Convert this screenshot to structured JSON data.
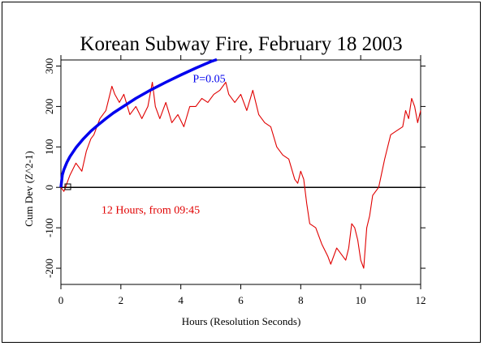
{
  "chart_data": {
    "type": "line",
    "title": "Korean Subway Fire, February 18 2003",
    "xlabel": "Hours (Resolution Seconds)",
    "ylabel": "Cum Dev (Z^2-1)",
    "xlim": [
      0,
      12
    ],
    "ylim": [
      -240,
      315
    ],
    "x_ticks": [
      0,
      2,
      4,
      6,
      8,
      10,
      12
    ],
    "x_tick_labels": [
      "0",
      "2",
      "4",
      "6",
      "8",
      "10",
      "12"
    ],
    "y_ticks": [
      -200,
      -100,
      0,
      100,
      200,
      300
    ],
    "y_tick_labels": [
      "-200",
      "-100",
      "0",
      "100",
      "200",
      "300"
    ],
    "grid": false,
    "series": [
      {
        "color": "#e00000",
        "x": [
          0.0,
          0.1,
          0.2,
          0.3,
          0.5,
          0.7,
          0.85,
          1.0,
          1.1,
          1.3,
          1.5,
          1.7,
          1.8,
          1.95,
          2.1,
          2.3,
          2.5,
          2.7,
          2.9,
          3.05,
          3.15,
          3.3,
          3.5,
          3.7,
          3.9,
          4.1,
          4.3,
          4.5,
          4.7,
          4.9,
          5.1,
          5.3,
          5.5,
          5.6,
          5.8,
          6.0,
          6.2,
          6.4,
          6.6,
          6.8,
          7.0,
          7.2,
          7.4,
          7.6,
          7.8,
          7.9,
          8.0,
          8.1,
          8.2,
          8.3,
          8.5,
          8.7,
          8.9,
          9.0,
          9.2,
          9.4,
          9.5,
          9.6,
          9.7,
          9.8,
          9.9,
          10.0,
          10.1,
          10.2,
          10.3,
          10.4,
          10.6,
          10.8,
          11.0,
          11.2,
          11.4,
          11.5,
          11.6,
          11.7,
          11.8,
          11.9,
          12.0
        ],
        "y": [
          0,
          -10,
          10,
          30,
          60,
          40,
          90,
          120,
          130,
          170,
          190,
          250,
          230,
          210,
          230,
          180,
          200,
          170,
          200,
          260,
          200,
          170,
          210,
          160,
          180,
          150,
          200,
          200,
          220,
          210,
          230,
          240,
          260,
          230,
          210,
          230,
          190,
          240,
          180,
          160,
          150,
          100,
          80,
          70,
          20,
          10,
          40,
          20,
          -40,
          -90,
          -100,
          -140,
          -170,
          -190,
          -150,
          -170,
          -180,
          -150,
          -90,
          -100,
          -130,
          -180,
          -200,
          -100,
          -70,
          -20,
          0,
          70,
          130,
          140,
          150,
          190,
          170,
          220,
          200,
          160,
          190
        ]
      },
      {
        "color": "#0000ee",
        "x": [
          0.0,
          0.05,
          0.1,
          0.2,
          0.3,
          0.5,
          0.75,
          1.0,
          1.25,
          1.5,
          1.75,
          2.0,
          2.5,
          3.0,
          3.5,
          4.0,
          4.5,
          5.0,
          5.2
        ],
        "y": [
          0,
          31,
          44,
          62,
          76,
          98,
          120,
          139,
          155,
          170,
          184,
          196,
          220,
          241,
          260,
          278,
          295,
          311,
          316
        ]
      }
    ],
    "annotations": [
      {
        "text": "P=0.05",
        "x": 4.4,
        "y": 260,
        "color": "#0000ee"
      },
      {
        "text": "12 Hours, from 09:45",
        "x": 1.35,
        "y": -65,
        "color": "#e00000"
      }
    ]
  }
}
